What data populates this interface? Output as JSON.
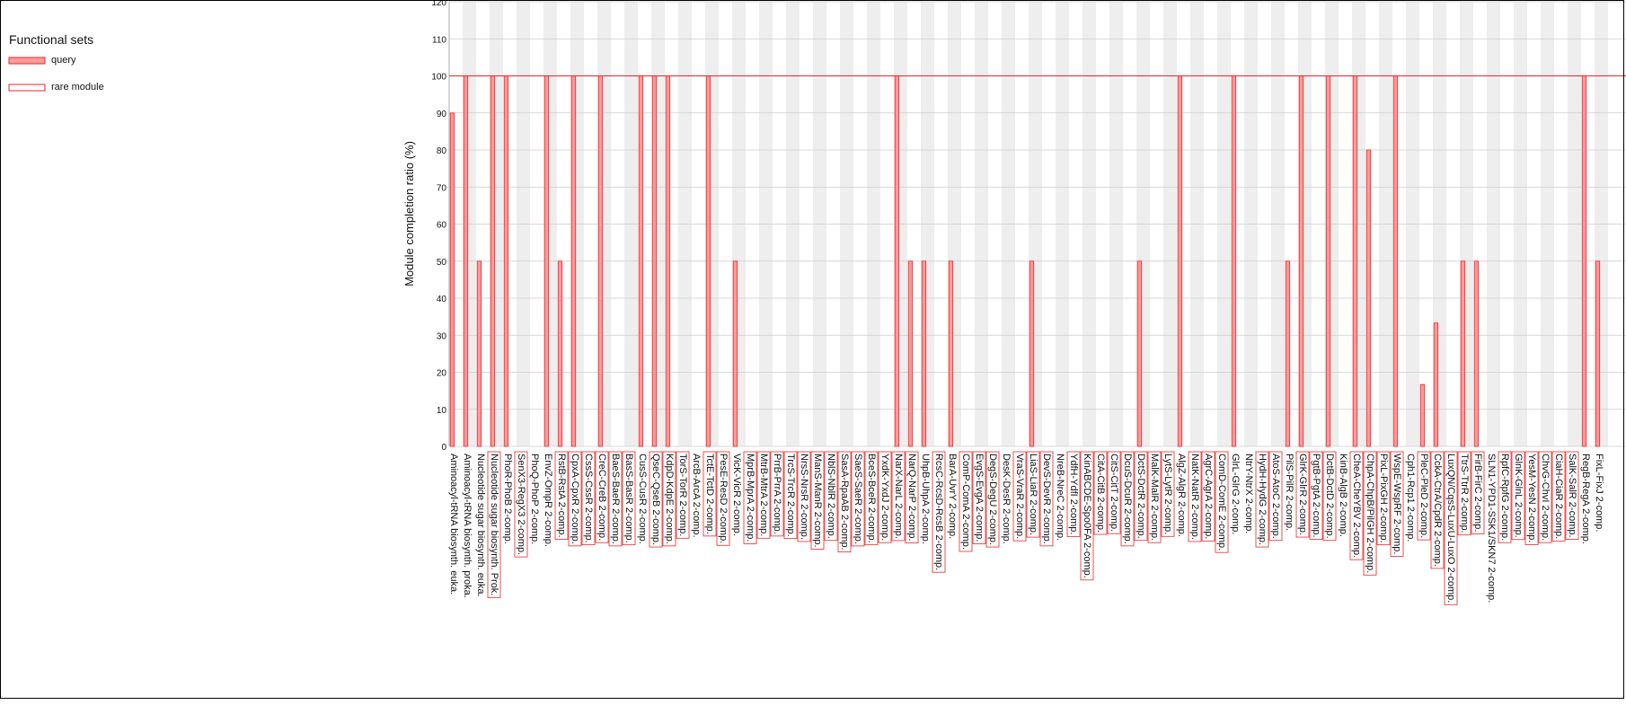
{
  "legend": {
    "title": "Functional sets",
    "items": [
      {
        "label": "query",
        "style": "filled"
      },
      {
        "label": "rare module",
        "style": "outline"
      }
    ]
  },
  "colors": {
    "bar_fill": "#ff9a9a",
    "bar_stroke": "#e8272c",
    "reference_line": "#e8272c",
    "stripe": "#eeeeee",
    "grid": "#cccccc"
  },
  "chart_data": {
    "type": "bar",
    "title": "",
    "xlabel": "",
    "ylabel": "Module completion ratio (%)",
    "ylim": [
      0,
      120
    ],
    "yticks": [
      0,
      10,
      20,
      30,
      40,
      50,
      60,
      70,
      80,
      90,
      100,
      110,
      120
    ],
    "reference_line": 100,
    "grid": true,
    "legend_position": "top-left",
    "categories": [
      "Aminoacyl-tRNA biosynth. euka.",
      "Aminoacyl-tRNA biosynth. proka.",
      "Nucleotide sugar biosynth. euka.",
      "Nucleotide sugar biosynth. Prok.",
      "PhoR-PhoB 2-comp.",
      "SenX3-RegX3 2-comp.",
      "PhoQ-PhoP 2-comp.",
      "EnvZ-OmpR 2-comp.",
      "RstB-RstA 2-comp.",
      "CpxA-CpxR 2-comp.",
      "CssS-CssR 2-comp.",
      "CreC-CreB 2-comp.",
      "BaeS-BaeR 2-comp.",
      "BasS-BasR 2-comp.",
      "CusS-CusR 2-comp.",
      "QseC-QseB 2-comp.",
      "KdpD-KdpE 2-comp.",
      "TorS-TorR 2-comp.",
      "ArcB-ArcA 2-comp.",
      "TctE-TctD 2-comp.",
      "PesE-ResD 2-comp.",
      "VicK-VicR 2-comp.",
      "MprB-MprA 2-comp.",
      "MtrB-MtrA 2-comp.",
      "PrrB-PrrA 2-comp.",
      "TrcS-TrcR 2-comp.",
      "NrsS-NrsR 2-comp.",
      "ManS-ManR 2-comp.",
      "NblS-NblR 2-comp.",
      "SasA-RpaAB 2-comp.",
      "SaeS-SaeR 2-comp.",
      "BceS-BceR 2-comp.",
      "YxdK-YxdJ 2-comp.",
      "NarX-NarL 2-comp.",
      "NarQ-NarP 2-comp.",
      "UhpB-UhpA 2-comp.",
      "RcsC-RcsD-RcsB 2-comp.",
      "BarA-UvrY 2-comp.",
      "ComP-ComA 2-comp.",
      "EvgS-EvgA 2-comp.",
      "DegS-DegU 2-comp.",
      "DesK-DesR 2-comp.",
      "VraS-VraR 2-comp.",
      "LiaS-LiaR 2-comp.",
      "DevS-DevR 2-comp.",
      "NreB-NreC 2-comp.",
      "YdfH-YdfI 2-comp.",
      "KinABCDE-Spo0FA 2-comp.",
      "CitA-CitB 2-comp.",
      "CitS-CitT 2-comp.",
      "DcuS-DcuR 2-comp.",
      "DctS-DctR 2-comp.",
      "MalK-MalR 2-comp.",
      "LytS-LytR 2-comp.",
      "AlgZ-AlgR 2-comp.",
      "NatK-NatR 2-comp.",
      "AgrC-AgrA 2-comp.",
      "ComD-ComE 2-comp.",
      "GlrL-GlrG 2-comp.",
      "NtrY-NtrX 2-comp.",
      "HydH-HydG 2-comp.",
      "AtoS-AtoC 2-comp.",
      "PilS-PilR 2-comp.",
      "GlrK-GlrR 2-comp.",
      "PgtB-PgtA 2-comp.",
      "DctB-DctD 2-comp.",
      "KinB-AlgB 2-comp.",
      "CheA-CheYBV 2-comp.",
      "ChpA-ChpB/PilGH 2-comp.",
      "PixL-PixGH 2-comp.",
      "WspE-WspRF 2-comp.",
      "Cph1-Rcp1 2-comp.",
      "PleC-PleD 2-comp.",
      "CckA-CtrA/CpdR 2-comp.",
      "LuxQN/CqsS-LuxU-LuxO 2-comp.",
      "TtrS-TtrR 2-comp.",
      "FirB-FirC 2-comp.",
      "SLN1-YPD1-SSK1/SKN7 2-comp.",
      "RpfC-RpfG 2-comp.",
      "GlnK-GlnL 2-comp.",
      "YesM-YesN 2-comp.",
      "ChvG-ChvI 2-comp.",
      "CiaH-CiaR 2-comp.",
      "SalK-SalR 2-comp.",
      "RegB-RegA 2-comp.",
      "FixL-FixJ 2-comp."
    ],
    "values": [
      90,
      100,
      50,
      100,
      100,
      0,
      0,
      100,
      50,
      100,
      0,
      100,
      0,
      0,
      100,
      100,
      100,
      0,
      0,
      100,
      0,
      50,
      0,
      0,
      0,
      0,
      0,
      0,
      0,
      0,
      0,
      0,
      0,
      100,
      50,
      50,
      0,
      50,
      0,
      0,
      0,
      0,
      0,
      50,
      0,
      0,
      0,
      0,
      0,
      0,
      0,
      50,
      0,
      0,
      100,
      0,
      0,
      0,
      100,
      0,
      0,
      0,
      50,
      100,
      0,
      100,
      0,
      100,
      80,
      0,
      100,
      0,
      16.7,
      33.3,
      0,
      50,
      50,
      0,
      0,
      0,
      0,
      0,
      0,
      0,
      100,
      50
    ],
    "rare_module": [
      false,
      false,
      false,
      true,
      false,
      true,
      false,
      false,
      true,
      true,
      true,
      true,
      true,
      true,
      false,
      true,
      true,
      true,
      false,
      true,
      true,
      false,
      true,
      true,
      true,
      true,
      true,
      true,
      true,
      true,
      true,
      true,
      true,
      true,
      true,
      false,
      true,
      false,
      true,
      true,
      true,
      false,
      true,
      true,
      true,
      false,
      true,
      true,
      true,
      true,
      true,
      true,
      true,
      true,
      false,
      true,
      true,
      true,
      false,
      false,
      true,
      true,
      false,
      true,
      true,
      true,
      false,
      true,
      true,
      true,
      true,
      false,
      true,
      true,
      true,
      true,
      true,
      false,
      true,
      true,
      true,
      true,
      true,
      true,
      false,
      false
    ]
  }
}
